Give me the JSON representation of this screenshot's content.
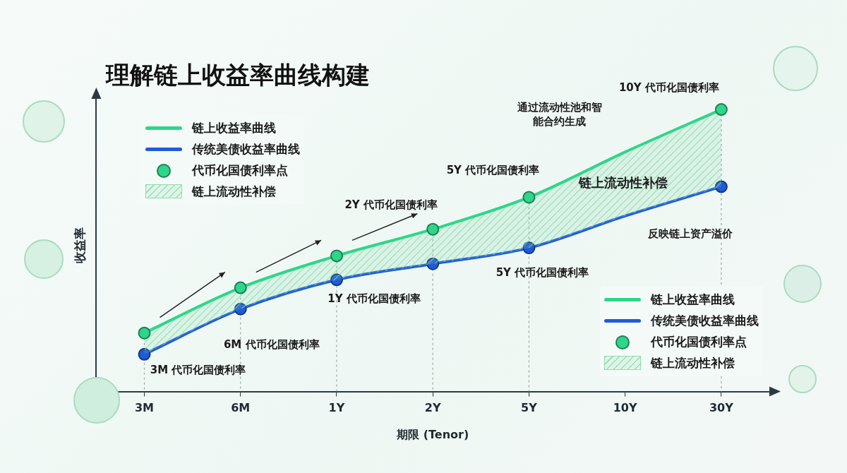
{
  "chart_data": {
    "type": "line",
    "title": "理解链上收益率曲线构建",
    "x_label": "期限 (Tenor)",
    "y_label": "收益率",
    "categories": [
      "3M",
      "6M",
      "1Y",
      "2Y",
      "5Y",
      "10Y",
      "30Y"
    ],
    "series": [
      {
        "name": "链上收益率曲线",
        "color": "#2ed68a",
        "marker": "circle",
        "values": [
          22,
          39,
          51,
          61,
          73,
          90,
          106
        ]
      },
      {
        "name": "传统美债收益率曲线",
        "color": "#1f5bd8",
        "marker": "circle",
        "values": [
          14,
          31,
          42,
          48,
          54,
          66,
          77
        ]
      }
    ],
    "points": {
      "name": "代币化国债利率点",
      "categories": [
        "3M",
        "6M",
        "1Y",
        "2Y",
        "5Y",
        "30Y"
      ]
    },
    "band": {
      "name": "链上流动性补偿",
      "color": "#7fd9a8"
    },
    "annotations": [
      {
        "text": "3M 代币化国债利率",
        "category": "3M",
        "series": "传统美债收益率曲线"
      },
      {
        "text": "6M 代币化国债利率",
        "category": "6M",
        "series": "传统美债收益率曲线"
      },
      {
        "text": "1Y 代币化国债利率",
        "category": "1Y",
        "series": "传统美债收益率曲线"
      },
      {
        "text": "2Y 代币化国债利率",
        "category": "2Y",
        "series": "链上收益率曲线"
      },
      {
        "text": "5Y 代币化国债利率",
        "category": "5Y",
        "series": "链上收益率曲线"
      },
      {
        "text": "5Y 代币化国债利率",
        "category": "5Y",
        "series": "传统美债收益率曲线"
      },
      {
        "text": "10Y 代币化国债利率",
        "category": "30Y",
        "series": "链上收益率曲线"
      },
      {
        "text": "通过流动性池和智能合约生成",
        "category": "10Y",
        "series": "链上收益率曲线"
      },
      {
        "text": "链上流动性补偿",
        "category": "10Y",
        "series": "链上收益率曲线"
      },
      {
        "text": "反映链上资产溢价",
        "category": "10Y",
        "series": "传统美债收益率曲线"
      }
    ],
    "ylim": [
      0,
      110
    ],
    "tick_labels": "x",
    "grid": false,
    "legend": "top left"
  }
}
